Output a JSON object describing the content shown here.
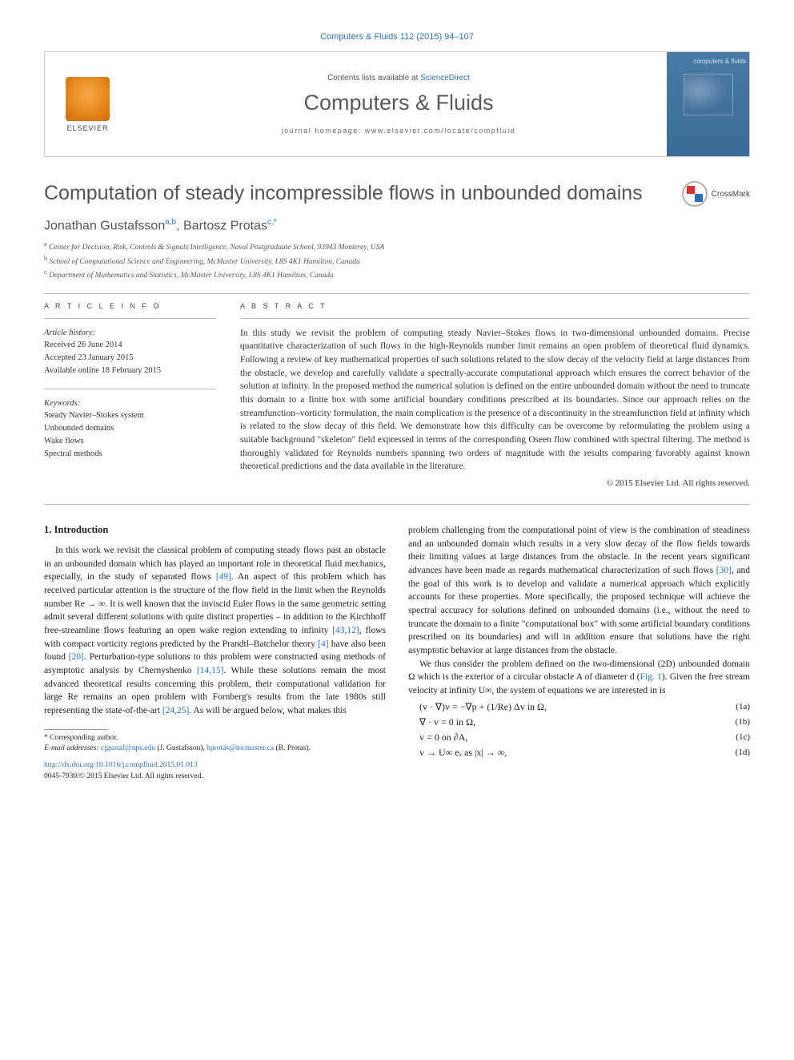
{
  "journal_line": "Computers & Fluids 112 (2015) 94–107",
  "header": {
    "contents_prefix": "Contents lists available at ",
    "contents_link": "ScienceDirect",
    "journal_name": "Computers & Fluids",
    "homepage_prefix": "journal homepage: ",
    "homepage_url": "www.elsevier.com/locate/compfluid",
    "elsevier_label": "ELSEVIER",
    "cover_title": "computers & fluids"
  },
  "title": "Computation of steady incompressible flows in unbounded domains",
  "crossmark_label": "CrossMark",
  "authors_html": "Jonathan Gustafsson",
  "author1_sup": "a,b",
  "author2": "Bartosz Protas",
  "author2_sup": "c,*",
  "affiliations": {
    "a": "Center for Decision, Risk, Controls & Signals Intelligence, Naval Postgraduate School, 93943 Monterey, USA",
    "b": "School of Computational Science and Engineering, McMaster University, L8S 4K1 Hamilton, Canada",
    "c": "Department of Mathematics and Statistics, McMaster University, L8S 4K1 Hamilton, Canada"
  },
  "info_label": "A R T I C L E   I N F O",
  "abstract_label": "A B S T R A C T",
  "history": {
    "title": "Article history:",
    "received": "Received 26 June 2014",
    "accepted": "Accepted 23 January 2015",
    "online": "Available online 18 February 2015"
  },
  "keywords": {
    "title": "Keywords:",
    "k1": "Steady Navier–Stokes system",
    "k2": "Unbounded domains",
    "k3": "Wake flows",
    "k4": "Spectral methods"
  },
  "abstract": "In this study we revisit the problem of computing steady Navier–Stokes flows in two-dimensional unbounded domains. Precise quantitative characterization of such flows in the high-Reynolds number limit remains an open problem of theoretical fluid dynamics. Following a review of key mathematical properties of such solutions related to the slow decay of the velocity field at large distances from the obstacle, we develop and carefully validate a spectrally-accurate computational approach which ensures the correct behavior of the solution at infinity. In the proposed method the numerical solution is defined on the entire unbounded domain without the need to truncate this domain to a finite box with some artificial boundary conditions prescribed at its boundaries. Since our approach relies on the streamfunction–vorticity formulation, the main complication is the presence of a discontinuity in the streamfunction field at infinity which is related to the slow decay of this field. We demonstrate how this difficulty can be overcome by reformulating the problem using a suitable background \"skeleton\" field expressed in terms of the corresponding Oseen flow combined with spectral filtering. The method is thoroughly validated for Reynolds numbers spanning two orders of magnitude with the results comparing favorably against known theoretical predictions and the data available in the literature.",
  "copyright": "© 2015 Elsevier Ltd. All rights reserved.",
  "section1": "1. Introduction",
  "col1p1a": "In this work we revisit the classical problem of computing steady flows past an obstacle in an unbounded domain which has played an important role in theoretical fluid mechanics, especially, in the study of separated flows ",
  "ref49": "[49]",
  "col1p1b": ". An aspect of this problem which has received particular attention is the structure of the flow field in the limit when the Reynolds number Re → ∞. It is well known that the inviscid Euler flows in the same geometric setting admit several different solutions with quite distinct properties – in addition to the Kirchhoff free-streamline flows featuring an open wake region extending to infinity ",
  "ref4312": "[43,12]",
  "col1p1c": ", flows with compact vorticity regions predicted by the Prandtl–Batchelor theory ",
  "ref4": "[4]",
  "col1p1d": " have also been found ",
  "ref20": "[20]",
  "col1p1e": ". Perturbation-type solutions to this problem were constructed using methods of asymptotic analysis by Chernyshenko ",
  "ref1415": "[14,15]",
  "col1p1f": ". While these solutions remain the most advanced theoretical results concerning this problem, their computational validation for large Re remains an open problem with Fornberg's results from the late 1980s still representing the state-of-the-art ",
  "ref2425": "[24,25]",
  "col1p1g": ". As will be argued below, what makes this",
  "col2p1a": "problem challenging from the computational point of view is the combination of steadiness and an unbounded domain which results in a very slow decay of the flow fields towards their limiting values at large distances from the obstacle. In the recent years significant advances have been made as regards mathematical characterization of such flows ",
  "ref30": "[30]",
  "col2p1b": ", and the goal of this work is to develop and validate a numerical approach which explicitly accounts for these properties. More specifically, the proposed technique will achieve the spectral accuracy for solutions defined on unbounded domains (i.e., without the need to truncate the domain to a finite \"computational box\" with some artificial boundary conditions prescribed on its boundaries) and will in addition ensure that solutions have the right asymptotic behavior at large distances from the obstacle.",
  "col2p2a": "We thus consider the problem defined on the two-dimensional (2D) unbounded domain Ω which is the exterior of a circular obstacle A of diameter d (",
  "reffig1": "Fig. 1",
  "col2p2b": "). Given the free stream velocity at infinity U∞, the system of equations we are interested in is",
  "eq1a": "(v · ∇)v = −∇p + (1/Re) Δv      in Ω,",
  "eq1a_num": "(1a)",
  "eq1b": "∇ · v = 0   in Ω,",
  "eq1b_num": "(1b)",
  "eq1c": "v = 0   on ∂A,",
  "eq1c_num": "(1c)",
  "eq1d": "v → U∞ eₓ   as |x| → ∞,",
  "eq1d_num": "(1d)",
  "footnote": {
    "corr": "* Corresponding author.",
    "email_label": "E-mail addresses:",
    "email1": "cjgustaf@nps.edu",
    "name1": "(J. Gustafsson),",
    "email2": "bprotas@mcmaster.ca",
    "name2": "(B. Protas)."
  },
  "doi": {
    "link": "http://dx.doi.org/10.1016/j.compfluid.2015.01.013",
    "line2": "0045-7930/© 2015 Elsevier Ltd. All rights reserved."
  },
  "colors": {
    "link": "#2a6ebb",
    "title_gray": "#555555",
    "text": "#333333",
    "rule": "#bbbbbb"
  }
}
